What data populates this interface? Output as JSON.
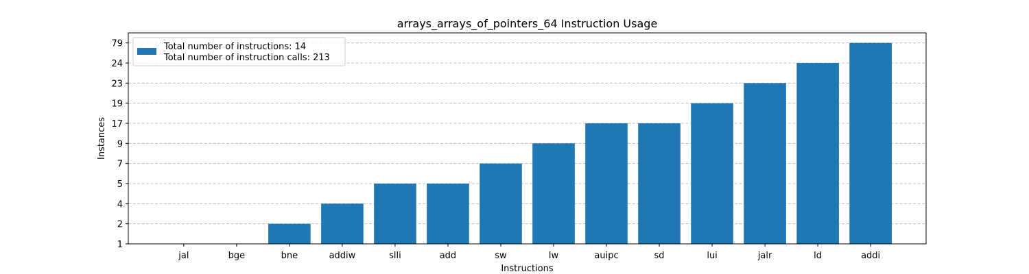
{
  "chart_data": {
    "type": "bar",
    "title": "arrays_arrays_of_pointers_64 Instruction Usage",
    "xlabel": "Instructions",
    "ylabel": "Instances",
    "categories": [
      "jal",
      "bge",
      "bne",
      "addiw",
      "slli",
      "add",
      "sw",
      "lw",
      "auipc",
      "sd",
      "lui",
      "jalr",
      "ld",
      "addi"
    ],
    "values": [
      1,
      1,
      2,
      4,
      5,
      5,
      7,
      9,
      17,
      17,
      19,
      23,
      24,
      79
    ],
    "y_ticks": [
      "1",
      "2",
      "4",
      "5",
      "7",
      "9",
      "17",
      "19",
      "23",
      "24",
      "79"
    ],
    "y_axis_note": "categorical: each distinct value occupies one equally spaced tick",
    "grid": "y-axis, dashed",
    "legend": {
      "placement": "upper-left",
      "lines": [
        "Total number of instructions: 14",
        "Total number of instruction calls: 213"
      ]
    },
    "bar_color": "#1f77b4"
  }
}
